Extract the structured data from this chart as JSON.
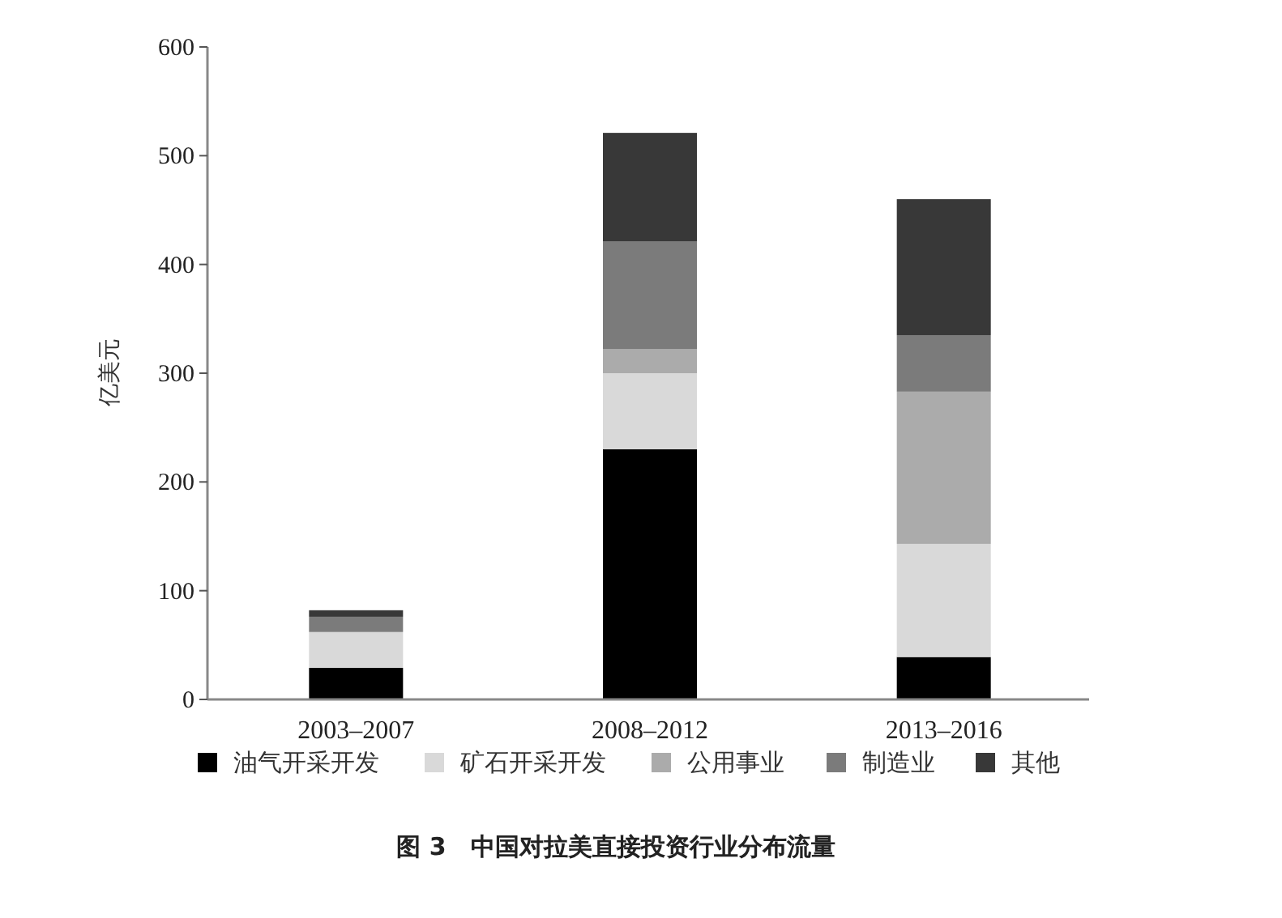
{
  "chart_data": {
    "type": "bar",
    "stacked": true,
    "title": "图 3　中国对拉美直接投资行业分布流量",
    "ylabel": "亿美元",
    "categories": [
      "2003–2007",
      "2008–2012",
      "2013–2016"
    ],
    "series": [
      {
        "name": "油气开采开发",
        "color": "#000000",
        "values": [
          29,
          230,
          39
        ]
      },
      {
        "name": "矿石开采开发",
        "color": "#d9d9d9",
        "values": [
          33,
          70,
          104
        ]
      },
      {
        "name": "公用事业",
        "color": "#ababab",
        "values": [
          null,
          22,
          140
        ]
      },
      {
        "name": "制造业",
        "color": "#7b7b7b",
        "values": [
          14,
          99,
          52
        ]
      },
      {
        "name": "其他",
        "color": "#383838",
        "values": [
          6,
          100,
          125
        ]
      }
    ],
    "ylim": [
      0,
      600
    ],
    "yticks": [
      0,
      100,
      200,
      300,
      400,
      500,
      600
    ],
    "legend": "bottom",
    "grid": false
  }
}
